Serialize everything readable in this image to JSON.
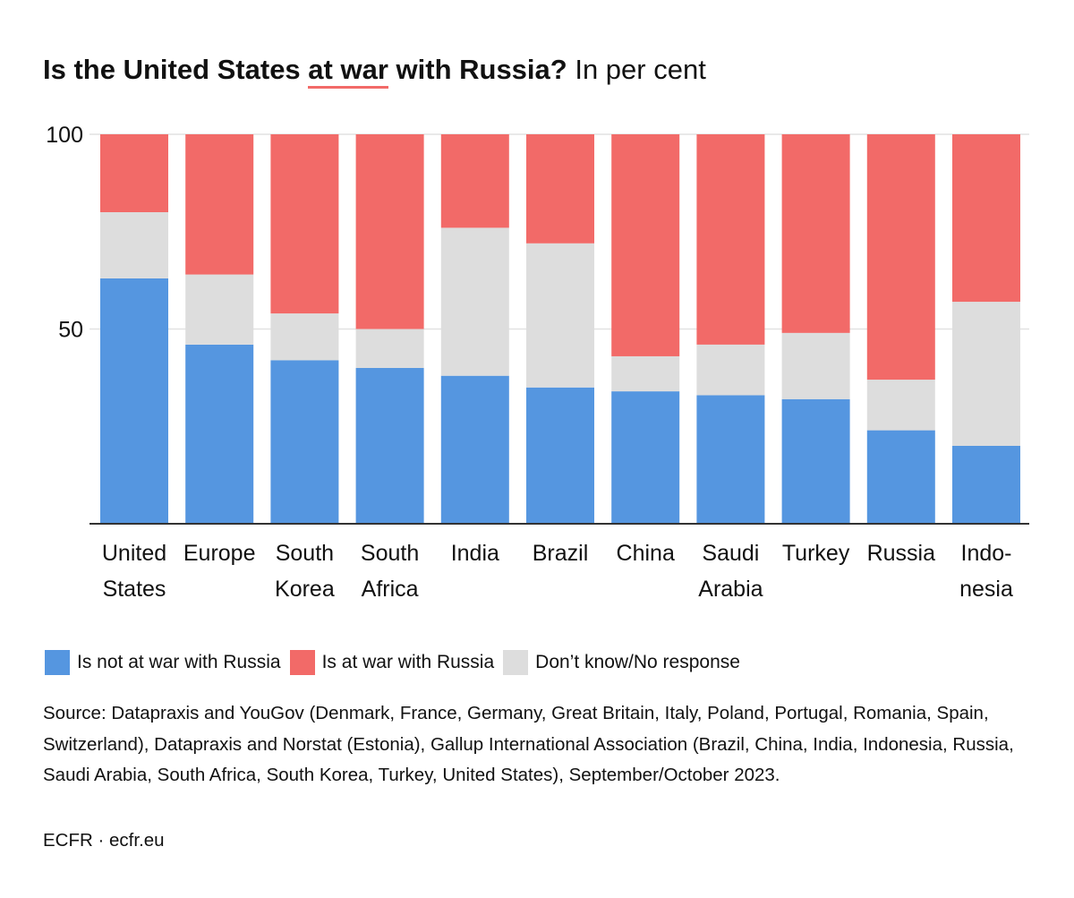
{
  "title": {
    "part1": "Is the United States ",
    "highlight": "at war",
    "part2": " with Russia?",
    "subtitle": " In per cent"
  },
  "colors": {
    "not_at_war": "#5596e0",
    "at_war": "#f26a68",
    "dont_know": "#dddddd",
    "gridline": "#e2e2e2",
    "axis": "#333333"
  },
  "chart_data": {
    "type": "bar",
    "stacked": true,
    "categories": [
      [
        "United",
        "States"
      ],
      [
        "Europe"
      ],
      [
        "South",
        "Korea"
      ],
      [
        "South",
        "Africa"
      ],
      [
        "India"
      ],
      [
        "Brazil"
      ],
      [
        "China"
      ],
      [
        "Saudi",
        "Arabia"
      ],
      [
        "Turkey"
      ],
      [
        "Russia"
      ],
      [
        "Indo-",
        "nesia"
      ]
    ],
    "series": [
      {
        "name": "Is not at war with Russia",
        "color": "#5596e0",
        "values": [
          63,
          46,
          42,
          40,
          38,
          35,
          34,
          33,
          32,
          24,
          20
        ]
      },
      {
        "name": "Don’t know/No response",
        "color": "#dddddd",
        "values": [
          17,
          18,
          12,
          10,
          38,
          37,
          9,
          13,
          17,
          13,
          37
        ]
      },
      {
        "name": "Is at war with Russia",
        "color": "#f26a68",
        "values": [
          20,
          36,
          46,
          50,
          24,
          28,
          57,
          54,
          51,
          63,
          43
        ]
      }
    ],
    "ylim": [
      0,
      100
    ],
    "yticks": [
      "50",
      "100"
    ],
    "grid": true,
    "legend_position": "bottom-left"
  },
  "legend": [
    {
      "label": "Is not at war with Russia",
      "color": "#5596e0"
    },
    {
      "label": "Is at war with Russia",
      "color": "#f26a68"
    },
    {
      "label": "Don’t know/No response",
      "color": "#dddddd"
    }
  ],
  "source": "Source: Datapraxis and YouGov (Denmark, France, Germany, Great Britain, Italy, Poland, Portugal, Romania, Spain, Switzerland), Datapraxis and Norstat (Estonia), Gallup International Association (Brazil, China, India, Indonesia, Russia, Saudi Arabia, South Africa, South Korea, Turkey, United States), September/October 2023.",
  "credit": "ECFR · ecfr.eu"
}
